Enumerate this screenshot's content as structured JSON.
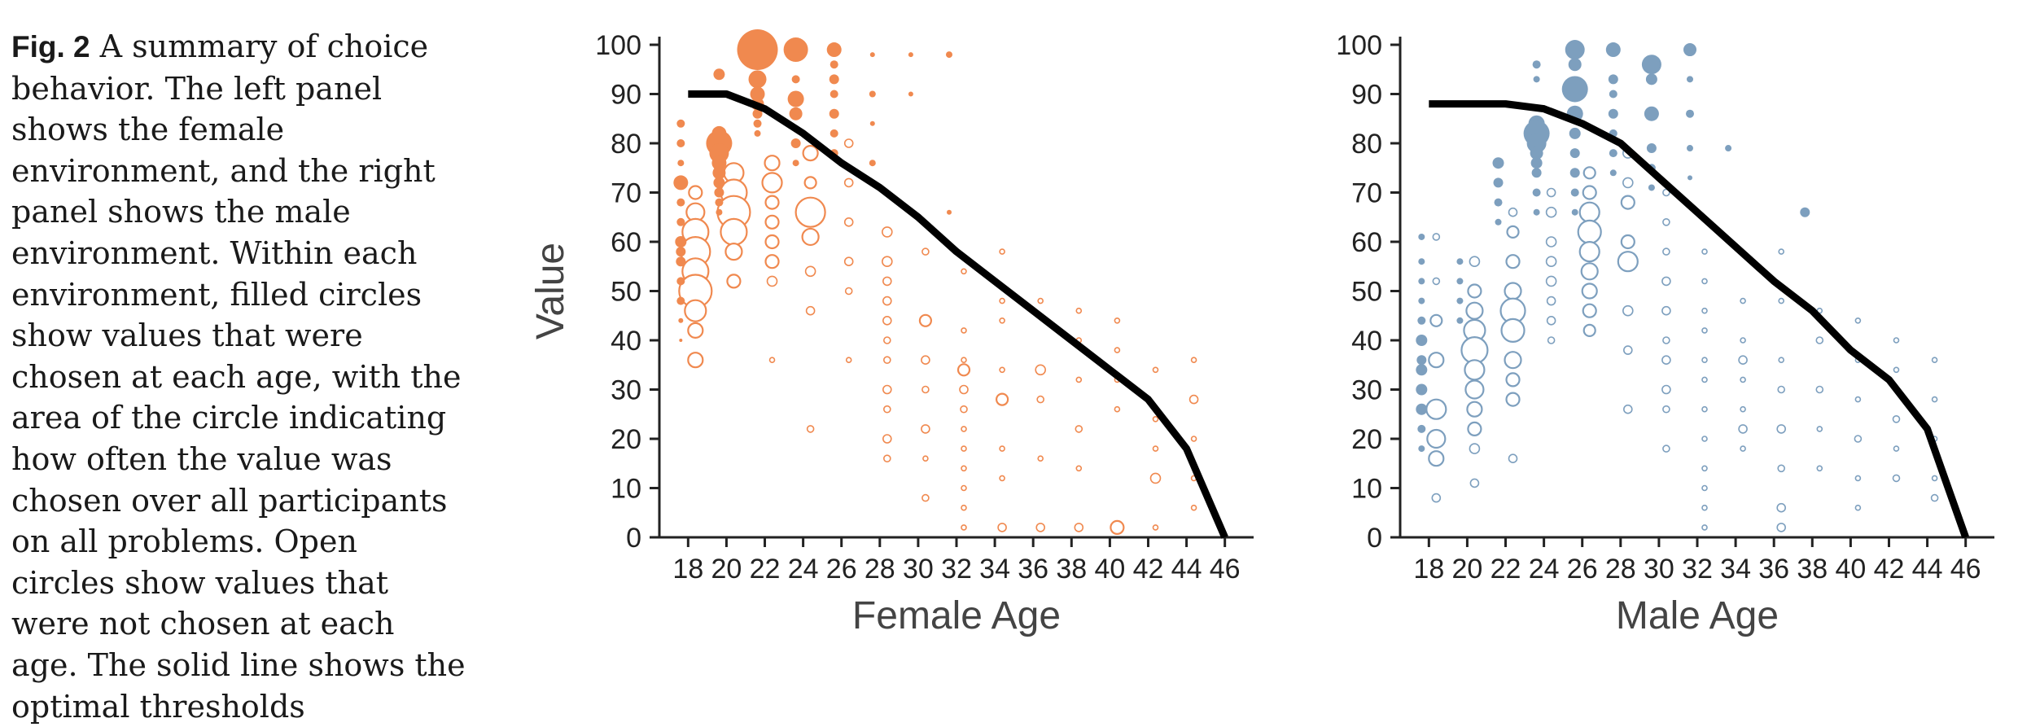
{
  "caption": {
    "label": "Fig. 2",
    "text": "A summary of choice behavior. The left panel shows the female environment, and the right panel shows the male environment. Within each environment, filled circles show values that were chosen at each age, with the area of the circle indicating how often the value was chosen over all participants on all problems. Open circles show values that were not chosen at each age. The solid line shows the optimal thresholds"
  },
  "chart_data": [
    {
      "type": "scatter",
      "panel": "female",
      "color": "#f0894f",
      "line_color": "#000000",
      "xlabel": "Female Age",
      "ylabel": "Value",
      "xticks": [
        18,
        20,
        22,
        24,
        26,
        28,
        30,
        32,
        34,
        36,
        38,
        40,
        42,
        44,
        46
      ],
      "yticks": [
        0,
        10,
        20,
        30,
        40,
        50,
        60,
        70,
        80,
        90,
        100
      ],
      "xlim": [
        16.5,
        47.5
      ],
      "ylim": [
        0,
        100
      ],
      "threshold_line": {
        "x": [
          18,
          20,
          22,
          24,
          26,
          28,
          30,
          32,
          34,
          36,
          38,
          40,
          42,
          44,
          46
        ],
        "y": [
          90,
          90,
          87,
          82,
          76,
          71,
          65,
          58,
          52,
          46,
          40,
          34,
          28,
          18,
          0
        ]
      },
      "chosen": [
        {
          "x": 18,
          "values": [
            84,
            80,
            76,
            72,
            68,
            64,
            60,
            58,
            56,
            52,
            48,
            44,
            40
          ],
          "sizes": [
            5,
            5,
            4,
            9,
            5,
            5,
            7,
            6,
            6,
            5,
            5,
            3,
            2
          ]
        },
        {
          "x": 20,
          "values": [
            94,
            82,
            80,
            78,
            76,
            74,
            72,
            70,
            68,
            66
          ],
          "sizes": [
            7,
            9,
            16,
            12,
            9,
            8,
            7,
            6,
            5,
            4
          ]
        },
        {
          "x": 22,
          "values": [
            99,
            93,
            90,
            88,
            86,
            84,
            82
          ],
          "sizes": [
            25,
            11,
            9,
            8,
            6,
            5,
            4
          ]
        },
        {
          "x": 24,
          "values": [
            99,
            93,
            89,
            86,
            80,
            76
          ],
          "sizes": [
            15,
            5,
            10,
            8,
            6,
            4
          ]
        },
        {
          "x": 26,
          "values": [
            99,
            96,
            93,
            90,
            86,
            82,
            78
          ],
          "sizes": [
            9,
            5,
            6,
            5,
            6,
            5,
            5
          ]
        },
        {
          "x": 28,
          "values": [
            98,
            90,
            84,
            76
          ],
          "sizes": [
            3,
            4,
            3,
            4
          ]
        },
        {
          "x": 30,
          "values": [
            98,
            90
          ],
          "sizes": [
            3,
            3
          ]
        },
        {
          "x": 32,
          "values": [
            98,
            66
          ],
          "sizes": [
            4,
            3
          ]
        }
      ],
      "open": [
        {
          "x": 18,
          "values": [
            70,
            66,
            62,
            58,
            54,
            50,
            46,
            42,
            36
          ],
          "sizes": [
            8,
            11,
            16,
            18,
            16,
            20,
            13,
            9,
            9
          ]
        },
        {
          "x": 20,
          "values": [
            74,
            70,
            66,
            62,
            58,
            52
          ],
          "sizes": [
            12,
            16,
            20,
            16,
            10,
            8
          ]
        },
        {
          "x": 22,
          "values": [
            76,
            72,
            68,
            64,
            60,
            56,
            52,
            36
          ],
          "sizes": [
            9,
            12,
            8,
            8,
            8,
            8,
            6,
            3
          ]
        },
        {
          "x": 24,
          "values": [
            78,
            72,
            66,
            61,
            54,
            46,
            22
          ],
          "sizes": [
            9,
            7,
            18,
            10,
            6,
            5,
            4
          ]
        },
        {
          "x": 26,
          "values": [
            80,
            72,
            64,
            56,
            50,
            36
          ],
          "sizes": [
            5,
            5,
            5,
            5,
            4,
            3
          ]
        },
        {
          "x": 28,
          "values": [
            62,
            56,
            52,
            48,
            44,
            40,
            36,
            30,
            26,
            20,
            16
          ],
          "sizes": [
            6,
            6,
            5,
            5,
            5,
            4,
            4,
            5,
            4,
            5,
            4
          ]
        },
        {
          "x": 30,
          "values": [
            58,
            44,
            36,
            30,
            22,
            16,
            8
          ],
          "sizes": [
            4,
            7,
            5,
            4,
            5,
            3,
            4
          ]
        },
        {
          "x": 32,
          "values": [
            54,
            42,
            36,
            34,
            30,
            26,
            22,
            18,
            14,
            10,
            6,
            2
          ],
          "sizes": [
            3,
            3,
            3,
            7,
            5,
            4,
            3,
            3,
            3,
            3,
            3,
            3
          ]
        },
        {
          "x": 34,
          "values": [
            58,
            48,
            44,
            34,
            28,
            18,
            12,
            2
          ],
          "sizes": [
            3,
            3,
            3,
            3,
            7,
            3,
            3,
            5
          ]
        },
        {
          "x": 36,
          "values": [
            48,
            34,
            28,
            16,
            2
          ],
          "sizes": [
            3,
            6,
            4,
            3,
            5
          ]
        },
        {
          "x": 38,
          "values": [
            46,
            40,
            32,
            22,
            14,
            2
          ],
          "sizes": [
            3,
            3,
            3,
            4,
            3,
            5
          ]
        },
        {
          "x": 40,
          "values": [
            44,
            38,
            32,
            26,
            2
          ],
          "sizes": [
            3,
            3,
            3,
            3,
            8
          ]
        },
        {
          "x": 42,
          "values": [
            34,
            24,
            18,
            12,
            2
          ],
          "sizes": [
            3,
            3,
            3,
            6,
            3
          ]
        },
        {
          "x": 44,
          "values": [
            36,
            28,
            20,
            12,
            6
          ],
          "sizes": [
            3,
            5,
            3,
            3,
            3
          ]
        }
      ]
    },
    {
      "type": "scatter",
      "panel": "male",
      "color": "#7d9fbe",
      "line_color": "#000000",
      "xlabel": "Male Age",
      "ylabel": "",
      "xticks": [
        18,
        20,
        22,
        24,
        26,
        28,
        30,
        32,
        34,
        36,
        38,
        40,
        42,
        44,
        46
      ],
      "yticks": [
        0,
        10,
        20,
        30,
        40,
        50,
        60,
        70,
        80,
        90,
        100
      ],
      "xlim": [
        16.5,
        47.5
      ],
      "ylim": [
        0,
        100
      ],
      "threshold_line": {
        "x": [
          18,
          20,
          22,
          24,
          26,
          28,
          30,
          32,
          34,
          36,
          38,
          40,
          42,
          44,
          46
        ],
        "y": [
          88,
          88,
          88,
          87,
          84,
          80,
          73,
          66,
          59,
          52,
          46,
          38,
          32,
          22,
          0
        ]
      },
      "chosen": [
        {
          "x": 18,
          "values": [
            61,
            56,
            52,
            48,
            44,
            40,
            36,
            34,
            30,
            26,
            22,
            18
          ],
          "sizes": [
            4,
            4,
            4,
            4,
            5,
            7,
            6,
            7,
            7,
            7,
            5,
            4
          ]
        },
        {
          "x": 20,
          "values": [
            56,
            52,
            48,
            44
          ],
          "sizes": [
            4,
            4,
            4,
            4
          ]
        },
        {
          "x": 22,
          "values": [
            76,
            72,
            68,
            64
          ],
          "sizes": [
            7,
            6,
            5,
            4
          ]
        },
        {
          "x": 24,
          "values": [
            96,
            93,
            84,
            82,
            80,
            78,
            76,
            74,
            70,
            66
          ],
          "sizes": [
            5,
            4,
            10,
            16,
            12,
            8,
            7,
            6,
            5,
            4
          ]
        },
        {
          "x": 26,
          "values": [
            99,
            96,
            91,
            86,
            82,
            78,
            74,
            70,
            66
          ],
          "sizes": [
            12,
            8,
            16,
            10,
            7,
            6,
            6,
            5,
            4
          ]
        },
        {
          "x": 28,
          "values": [
            99,
            93,
            90,
            86,
            82,
            78,
            74
          ],
          "sizes": [
            9,
            6,
            5,
            6,
            5,
            5,
            4
          ]
        },
        {
          "x": 30,
          "values": [
            96,
            93,
            86,
            79,
            75,
            71
          ],
          "sizes": [
            12,
            7,
            9,
            6,
            5,
            4
          ]
        },
        {
          "x": 32,
          "values": [
            99,
            93,
            86,
            79,
            73
          ],
          "sizes": [
            8,
            4,
            5,
            4,
            3
          ]
        },
        {
          "x": 34,
          "values": [
            79
          ],
          "sizes": [
            4
          ]
        },
        {
          "x": 38,
          "values": [
            66
          ],
          "sizes": [
            6
          ]
        }
      ],
      "open": [
        {
          "x": 18,
          "values": [
            61,
            52,
            44,
            36,
            26,
            20,
            16,
            8
          ],
          "sizes": [
            4,
            4,
            7,
            9,
            12,
            11,
            9,
            5
          ]
        },
        {
          "x": 20,
          "values": [
            56,
            50,
            46,
            42,
            38,
            34,
            30,
            26,
            22,
            18,
            11
          ],
          "sizes": [
            6,
            8,
            10,
            13,
            16,
            12,
            11,
            9,
            8,
            6,
            5
          ]
        },
        {
          "x": 22,
          "values": [
            66,
            62,
            56,
            50,
            46,
            42,
            36,
            32,
            28,
            16
          ],
          "sizes": [
            5,
            7,
            8,
            10,
            15,
            14,
            10,
            8,
            8,
            5
          ]
        },
        {
          "x": 24,
          "values": [
            70,
            66,
            60,
            56,
            52,
            48,
            44,
            40
          ],
          "sizes": [
            5,
            6,
            6,
            6,
            6,
            5,
            5,
            4
          ]
        },
        {
          "x": 26,
          "values": [
            74,
            70,
            66,
            62,
            58,
            54,
            50,
            46,
            42
          ],
          "sizes": [
            7,
            8,
            12,
            14,
            12,
            10,
            9,
            8,
            7
          ]
        },
        {
          "x": 28,
          "values": [
            78,
            72,
            68,
            60,
            56,
            46,
            38,
            26
          ],
          "sizes": [
            6,
            6,
            8,
            8,
            12,
            6,
            5,
            5
          ]
        },
        {
          "x": 30,
          "values": [
            70,
            64,
            58,
            52,
            46,
            40,
            36,
            30,
            26,
            18
          ],
          "sizes": [
            4,
            4,
            4,
            5,
            5,
            4,
            5,
            5,
            4,
            4
          ]
        },
        {
          "x": 32,
          "values": [
            58,
            52,
            46,
            42,
            36,
            32,
            26,
            20,
            14,
            10,
            6,
            2
          ],
          "sizes": [
            3,
            3,
            3,
            3,
            3,
            3,
            3,
            3,
            3,
            3,
            3,
            3
          ]
        },
        {
          "x": 34,
          "values": [
            48,
            40,
            36,
            32,
            26,
            22,
            18
          ],
          "sizes": [
            3,
            3,
            5,
            3,
            3,
            5,
            3
          ]
        },
        {
          "x": 36,
          "values": [
            58,
            48,
            36,
            30,
            22,
            14,
            6,
            2
          ],
          "sizes": [
            3,
            3,
            3,
            4,
            5,
            4,
            5,
            5
          ]
        },
        {
          "x": 38,
          "values": [
            46,
            40,
            30,
            22,
            14
          ],
          "sizes": [
            3,
            4,
            4,
            3,
            3
          ]
        },
        {
          "x": 40,
          "values": [
            44,
            36,
            28,
            20,
            12,
            6
          ],
          "sizes": [
            3,
            3,
            3,
            4,
            3,
            3
          ]
        },
        {
          "x": 42,
          "values": [
            40,
            34,
            24,
            18,
            12
          ],
          "sizes": [
            3,
            3,
            4,
            3,
            4
          ]
        },
        {
          "x": 44,
          "values": [
            36,
            28,
            20,
            12,
            8
          ],
          "sizes": [
            3,
            3,
            3,
            3,
            4
          ]
        }
      ]
    }
  ]
}
